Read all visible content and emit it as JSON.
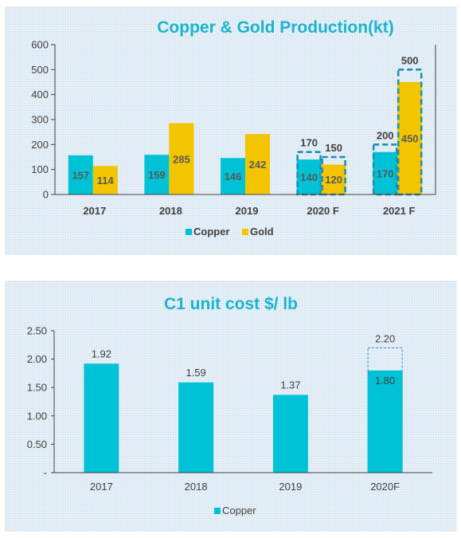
{
  "colors": {
    "copper": "#00c2d6",
    "gold": "#f2c500",
    "title": "#1ab4cf",
    "axis": "#404040"
  },
  "chart_data": [
    {
      "type": "bar",
      "title": "Copper & Gold Production(kt)",
      "categories": [
        "2017",
        "2018",
        "2019",
        "2020 F",
        "2021 F"
      ],
      "ylim": [
        0,
        600
      ],
      "yticks": [
        "0",
        "100",
        "200",
        "300",
        "400",
        "500",
        "600"
      ],
      "series": [
        {
          "name": "Copper",
          "values": [
            157,
            159,
            146,
            140,
            170
          ],
          "labels": [
            "157",
            "159",
            "146",
            "140",
            "170"
          ],
          "upper": [
            null,
            null,
            null,
            170,
            200
          ],
          "upper_labels": [
            "",
            "",
            "",
            "170",
            "200"
          ]
        },
        {
          "name": "Gold",
          "values": [
            114,
            285,
            242,
            120,
            450
          ],
          "labels": [
            "114",
            "285",
            "242",
            "120",
            "450"
          ],
          "upper": [
            null,
            null,
            null,
            150,
            500
          ],
          "upper_labels": [
            "",
            "",
            "",
            "150",
            "500"
          ]
        }
      ],
      "legend": "bottom"
    },
    {
      "type": "bar",
      "title": "C1 unit cost $/ lb",
      "categories": [
        "2017",
        "2018",
        "2019",
        "2020F"
      ],
      "ylim": [
        0,
        2.5
      ],
      "yticks": [
        "-",
        "0.50",
        "1.00",
        "1.50",
        "2.00",
        "2.50"
      ],
      "series": [
        {
          "name": "Copper",
          "values": [
            1.92,
            1.59,
            1.37,
            1.8
          ],
          "labels": [
            "1.92",
            "1.59",
            "1.37",
            "1.80"
          ],
          "upper": [
            null,
            null,
            null,
            2.2
          ],
          "upper_labels": [
            "",
            "",
            "",
            "2.20"
          ]
        }
      ],
      "legend": "bottom"
    }
  ]
}
